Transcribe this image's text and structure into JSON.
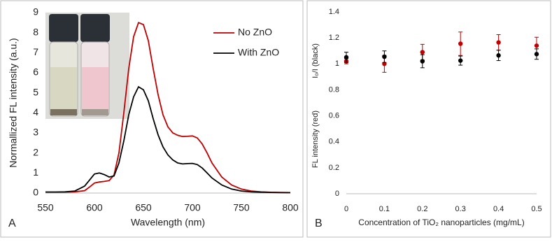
{
  "chart_data": [
    {
      "type": "line",
      "panel_label": "A",
      "x_label": "Wavelength (nm)",
      "y_label": "Normallized  FL intensity (a.u.)",
      "x": [
        550,
        560,
        570,
        580,
        590,
        595,
        600,
        605,
        610,
        615,
        620,
        625,
        630,
        635,
        640,
        645,
        650,
        655,
        660,
        665,
        670,
        675,
        680,
        685,
        690,
        695,
        700,
        705,
        710,
        715,
        720,
        730,
        740,
        750,
        760,
        770,
        780,
        790,
        800
      ],
      "series": [
        {
          "name": "No ZnO",
          "color": "#c00000",
          "values": [
            0.05,
            0.05,
            0.05,
            0.06,
            0.12,
            0.3,
            0.5,
            0.55,
            0.58,
            0.62,
            0.9,
            2.0,
            4.0,
            6.2,
            7.8,
            8.5,
            8.4,
            7.6,
            6.2,
            4.9,
            3.9,
            3.3,
            3.0,
            2.88,
            2.82,
            2.83,
            2.85,
            2.75,
            2.45,
            2.0,
            1.5,
            0.8,
            0.4,
            0.2,
            0.1,
            0.06,
            0.04,
            0.03,
            0.02
          ]
        },
        {
          "name": "With ZnO",
          "color": "#000000",
          "values": [
            0.05,
            0.05,
            0.06,
            0.1,
            0.35,
            0.65,
            0.95,
            1.0,
            0.92,
            0.8,
            0.85,
            1.5,
            2.6,
            3.9,
            4.8,
            5.3,
            5.15,
            4.6,
            3.7,
            2.9,
            2.3,
            1.9,
            1.65,
            1.5,
            1.45,
            1.47,
            1.48,
            1.42,
            1.25,
            1.0,
            0.75,
            0.4,
            0.2,
            0.1,
            0.06,
            0.04,
            0.03,
            0.02,
            0.02
          ]
        }
      ],
      "xlim": [
        550,
        800
      ],
      "xticks": [
        550,
        600,
        650,
        700,
        750,
        800
      ],
      "ylim": [
        0,
        9
      ],
      "yticks": [
        0,
        1,
        2,
        3,
        4,
        5,
        6,
        7,
        8,
        9
      ],
      "legend": "upper right"
    },
    {
      "type": "scatter",
      "panel_label": "B",
      "x_label": "Concentration of TiO₂ nanoparticles (mg/mL)",
      "y_labels": [
        "FL intensity (red)",
        "I₀/I (black)"
      ],
      "x": [
        0,
        0.1,
        0.2,
        0.3,
        0.4,
        0.5
      ],
      "series": [
        {
          "color": "#c00000",
          "values": [
            1.02,
            1.0,
            1.09,
            1.155,
            1.165,
            1.14
          ],
          "errors": [
            0.02,
            0.065,
            0.06,
            0.09,
            0.06,
            0.065
          ]
        },
        {
          "color": "#000000",
          "values": [
            1.05,
            1.055,
            1.02,
            1.025,
            1.065,
            1.075
          ],
          "errors": [
            0.04,
            0.045,
            0.05,
            0.035,
            0.04,
            0.04
          ]
        }
      ],
      "xlim": [
        0,
        0.5
      ],
      "xticks": [
        0,
        0.1,
        0.2,
        0.3,
        0.4,
        0.5
      ],
      "ylim": [
        0,
        1.4
      ],
      "yticks": [
        0,
        0.2,
        0.4,
        0.6,
        0.8,
        1,
        1.2,
        1.4
      ]
    }
  ]
}
